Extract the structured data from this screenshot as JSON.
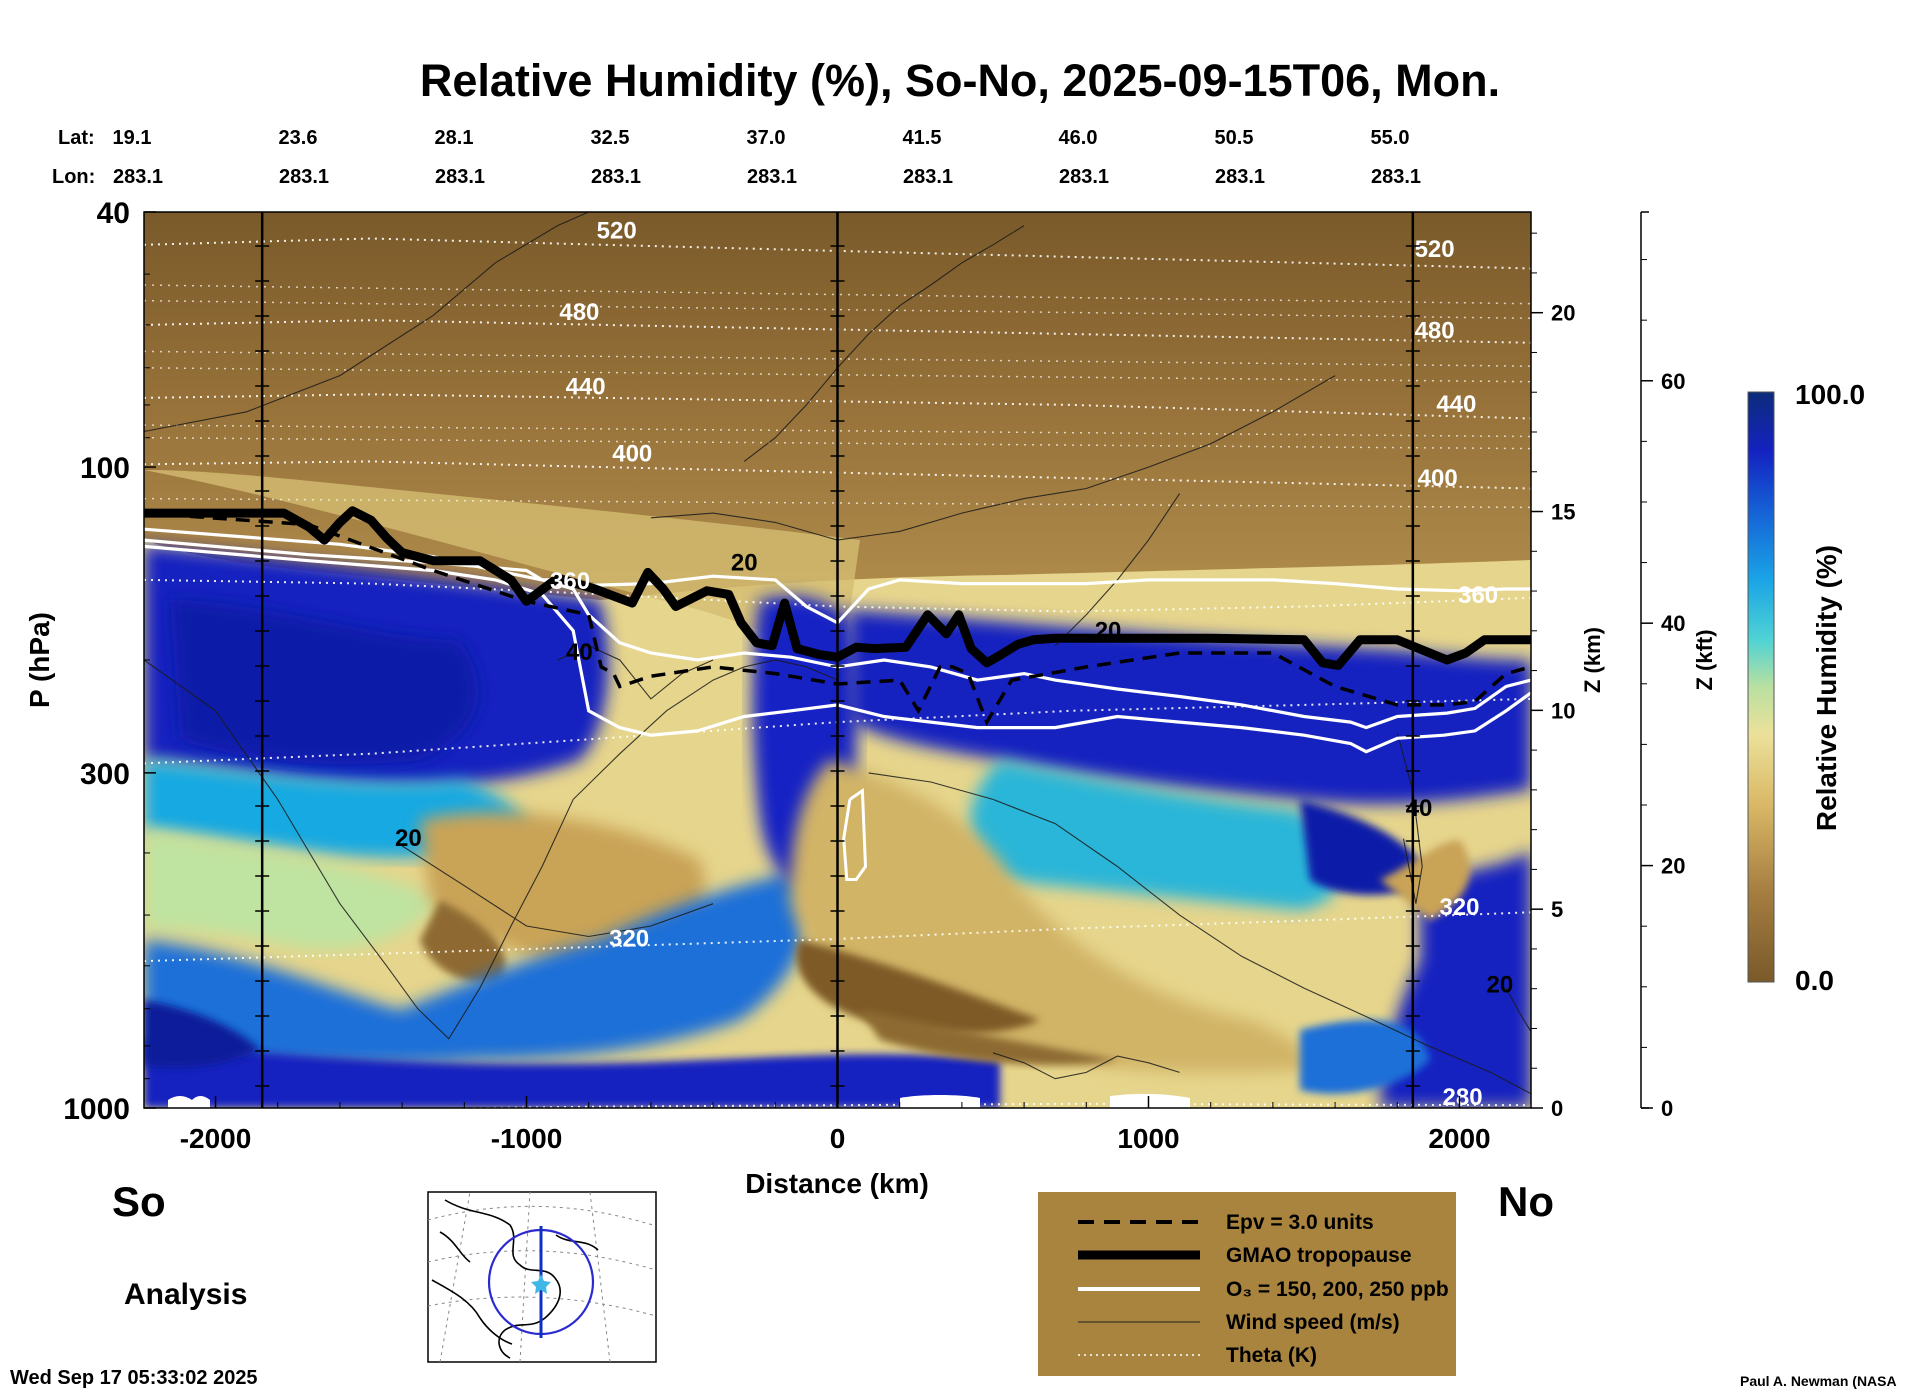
{
  "chart_data": {
    "type": "heatmap",
    "title": "Relative Humidity (%), So-No, 2025-09-15T06, Mon.",
    "xlabel": "Distance (km)",
    "ylabel": "P (hPa)",
    "y2label": "Z (km)",
    "y3label": "Z (kft)",
    "colorbar_label": "Relative Humidity (%)",
    "colorbar_max": "100.0",
    "colorbar_min": "0.0",
    "xlim": [
      -2230,
      2230
    ],
    "ylim": [
      1000,
      40
    ],
    "x_ticks": [
      -2000,
      -1000,
      0,
      1000,
      2000
    ],
    "x_tick_labels": [
      "-2000",
      "-1000",
      "0",
      "1000",
      "2000"
    ],
    "y_ticks": [
      40,
      100,
      300,
      1000
    ],
    "y_tick_labels": [
      "40",
      "100",
      "300",
      "1000"
    ],
    "z_km_ticks": [
      0,
      5,
      10,
      15,
      20
    ],
    "z_km_tick_labels": [
      "0",
      "5",
      "10",
      "15",
      "20"
    ],
    "z_kft_ticks": [
      0,
      20,
      40,
      60
    ],
    "z_kft_tick_labels": [
      "0",
      "20",
      "40",
      "60"
    ],
    "lat_label": "Lat:",
    "lon_label": "Lon:",
    "lats": [
      "19.1",
      "23.6",
      "28.1",
      "32.5",
      "37.0",
      "41.5",
      "46.0",
      "50.5",
      "55.0"
    ],
    "lons": [
      "283.1",
      "283.1",
      "283.1",
      "283.1",
      "283.1",
      "283.1",
      "283.1",
      "283.1",
      "283.1"
    ],
    "vertical_markers_km": [
      -1850,
      0,
      1850
    ],
    "theta_levels": [
      280,
      320,
      360,
      400,
      440,
      480,
      520
    ],
    "contour_labels": [
      {
        "text": "520",
        "x": -710,
        "p": 44
      },
      {
        "text": "480",
        "x": -830,
        "p": 59
      },
      {
        "text": "440",
        "x": -810,
        "p": 77
      },
      {
        "text": "400",
        "x": -660,
        "p": 98
      },
      {
        "text": "360",
        "x": -860,
        "p": 155
      },
      {
        "text": "320",
        "x": -670,
        "p": 560
      },
      {
        "text": "520",
        "x": 1920,
        "p": 47
      },
      {
        "text": "480",
        "x": 1920,
        "p": 63
      },
      {
        "text": "440",
        "x": 1990,
        "p": 82
      },
      {
        "text": "400",
        "x": 1930,
        "p": 107
      },
      {
        "text": "360",
        "x": 2060,
        "p": 163
      },
      {
        "text": "320",
        "x": 2000,
        "p": 500
      },
      {
        "text": "280",
        "x": 2010,
        "p": 990
      },
      {
        "text": "20",
        "x": -300,
        "p": 145
      },
      {
        "text": "40",
        "x": -830,
        "p": 200
      },
      {
        "text": "20",
        "x": -1380,
        "p": 390
      },
      {
        "text": "20",
        "x": 870,
        "p": 185
      },
      {
        "text": "40",
        "x": 1870,
        "p": 350
      },
      {
        "text": "20",
        "x": 2130,
        "p": 660
      }
    ],
    "tropopause": {
      "x": [
        -2230,
        -1780,
        -1700,
        -1650,
        -1600,
        -1560,
        -1500,
        -1450,
        -1400,
        -1300,
        -1150,
        -1050,
        -1000,
        -900,
        -780,
        -660,
        -610,
        -560,
        -520,
        -420,
        -350,
        -310,
        -260,
        -210,
        -170,
        -130,
        -60,
        0,
        60,
        120,
        220,
        290,
        350,
        390,
        430,
        480,
        520,
        580,
        630,
        700,
        760,
        1200,
        1500,
        1560,
        1610,
        1680,
        1800,
        1960,
        2020,
        2080,
        2150,
        2230
      ],
      "p": [
        118,
        118,
        124,
        130,
        122,
        117,
        121,
        129,
        136,
        140,
        140,
        150,
        162,
        149,
        155,
        163,
        146,
        155,
        165,
        156,
        158,
        175,
        188,
        190,
        163,
        192,
        196,
        198,
        191,
        192,
        191,
        170,
        182,
        170,
        192,
        202,
        197,
        189,
        186,
        185,
        185,
        185,
        186,
        202,
        204,
        186,
        186,
        200,
        195,
        186,
        186,
        186
      ]
    },
    "epv_3": {
      "x": [
        -2230,
        -1700,
        -1300,
        -1000,
        -800,
        -760,
        -720,
        -700,
        -600,
        -400,
        -200,
        0,
        200,
        260,
        330,
        370,
        420,
        480,
        560,
        680,
        800,
        1100,
        1400,
        1600,
        1800,
        1960,
        2050,
        2150,
        2230
      ],
      "p": [
        118,
        123,
        145,
        162,
        170,
        205,
        210,
        220,
        212,
        205,
        210,
        218,
        215,
        240,
        205,
        205,
        210,
        250,
        215,
        210,
        205,
        195,
        195,
        220,
        235,
        235,
        232,
        210,
        205
      ]
    },
    "ozone_contours": [
      {
        "x": [
          -2230,
          -1600,
          -1300,
          -1100,
          -950,
          -850,
          -800,
          -700,
          -600,
          -450,
          -300,
          -150,
          0,
          150,
          300,
          450,
          600,
          700,
          900,
          1100,
          1300,
          1500,
          1650,
          1700,
          1800,
          1960,
          2050,
          2150,
          2230
        ],
        "p": [
          125,
          132,
          138,
          145,
          150,
          155,
          170,
          188,
          195,
          200,
          195,
          198,
          205,
          200,
          205,
          215,
          210,
          215,
          222,
          228,
          235,
          245,
          250,
          255,
          245,
          242,
          238,
          220,
          215
        ]
      },
      {
        "x": [
          -2230,
          -1700,
          -1300,
          -1100,
          -950,
          -850,
          -800,
          -700,
          -600,
          -450,
          -300,
          -150,
          0,
          150,
          300,
          450,
          700,
          900,
          1100,
          1300,
          1500,
          1650,
          1700,
          1800,
          1950,
          2050,
          2150,
          2230
        ],
        "p": [
          133,
          140,
          145,
          150,
          158,
          180,
          240,
          255,
          262,
          258,
          245,
          240,
          235,
          245,
          250,
          255,
          255,
          245,
          250,
          255,
          262,
          270,
          278,
          265,
          262,
          258,
          240,
          225
        ]
      },
      {
        "x": [
          -2230,
          -1700,
          -1300,
          -1000,
          -950,
          -900,
          -800,
          -600,
          -400,
          -200,
          -100,
          0,
          100,
          200,
          400,
          600,
          800,
          1000,
          1200,
          1400,
          1600,
          1800,
          2000,
          2150,
          2230
        ],
        "p": [
          130,
          137,
          141,
          145,
          150,
          150,
          153,
          152,
          148,
          150,
          165,
          175,
          155,
          150,
          152,
          152,
          152,
          150,
          150,
          150,
          152,
          155,
          156,
          155,
          155
        ]
      }
    ],
    "legend": {
      "epv": "Epv = 3.0 units",
      "tropopause": "GMAO tropopause",
      "ozone": "O₃ = 150, 200, 250 ppb",
      "wind": "Wind speed (m/s)",
      "theta": "Theta (K)"
    },
    "labels": {
      "left_end": "So",
      "right_end": "No",
      "analysis": "Analysis",
      "timestamp": "Wed Sep 17 05:33:02 2025",
      "credit": "Paul A. Newman (NASA"
    }
  }
}
